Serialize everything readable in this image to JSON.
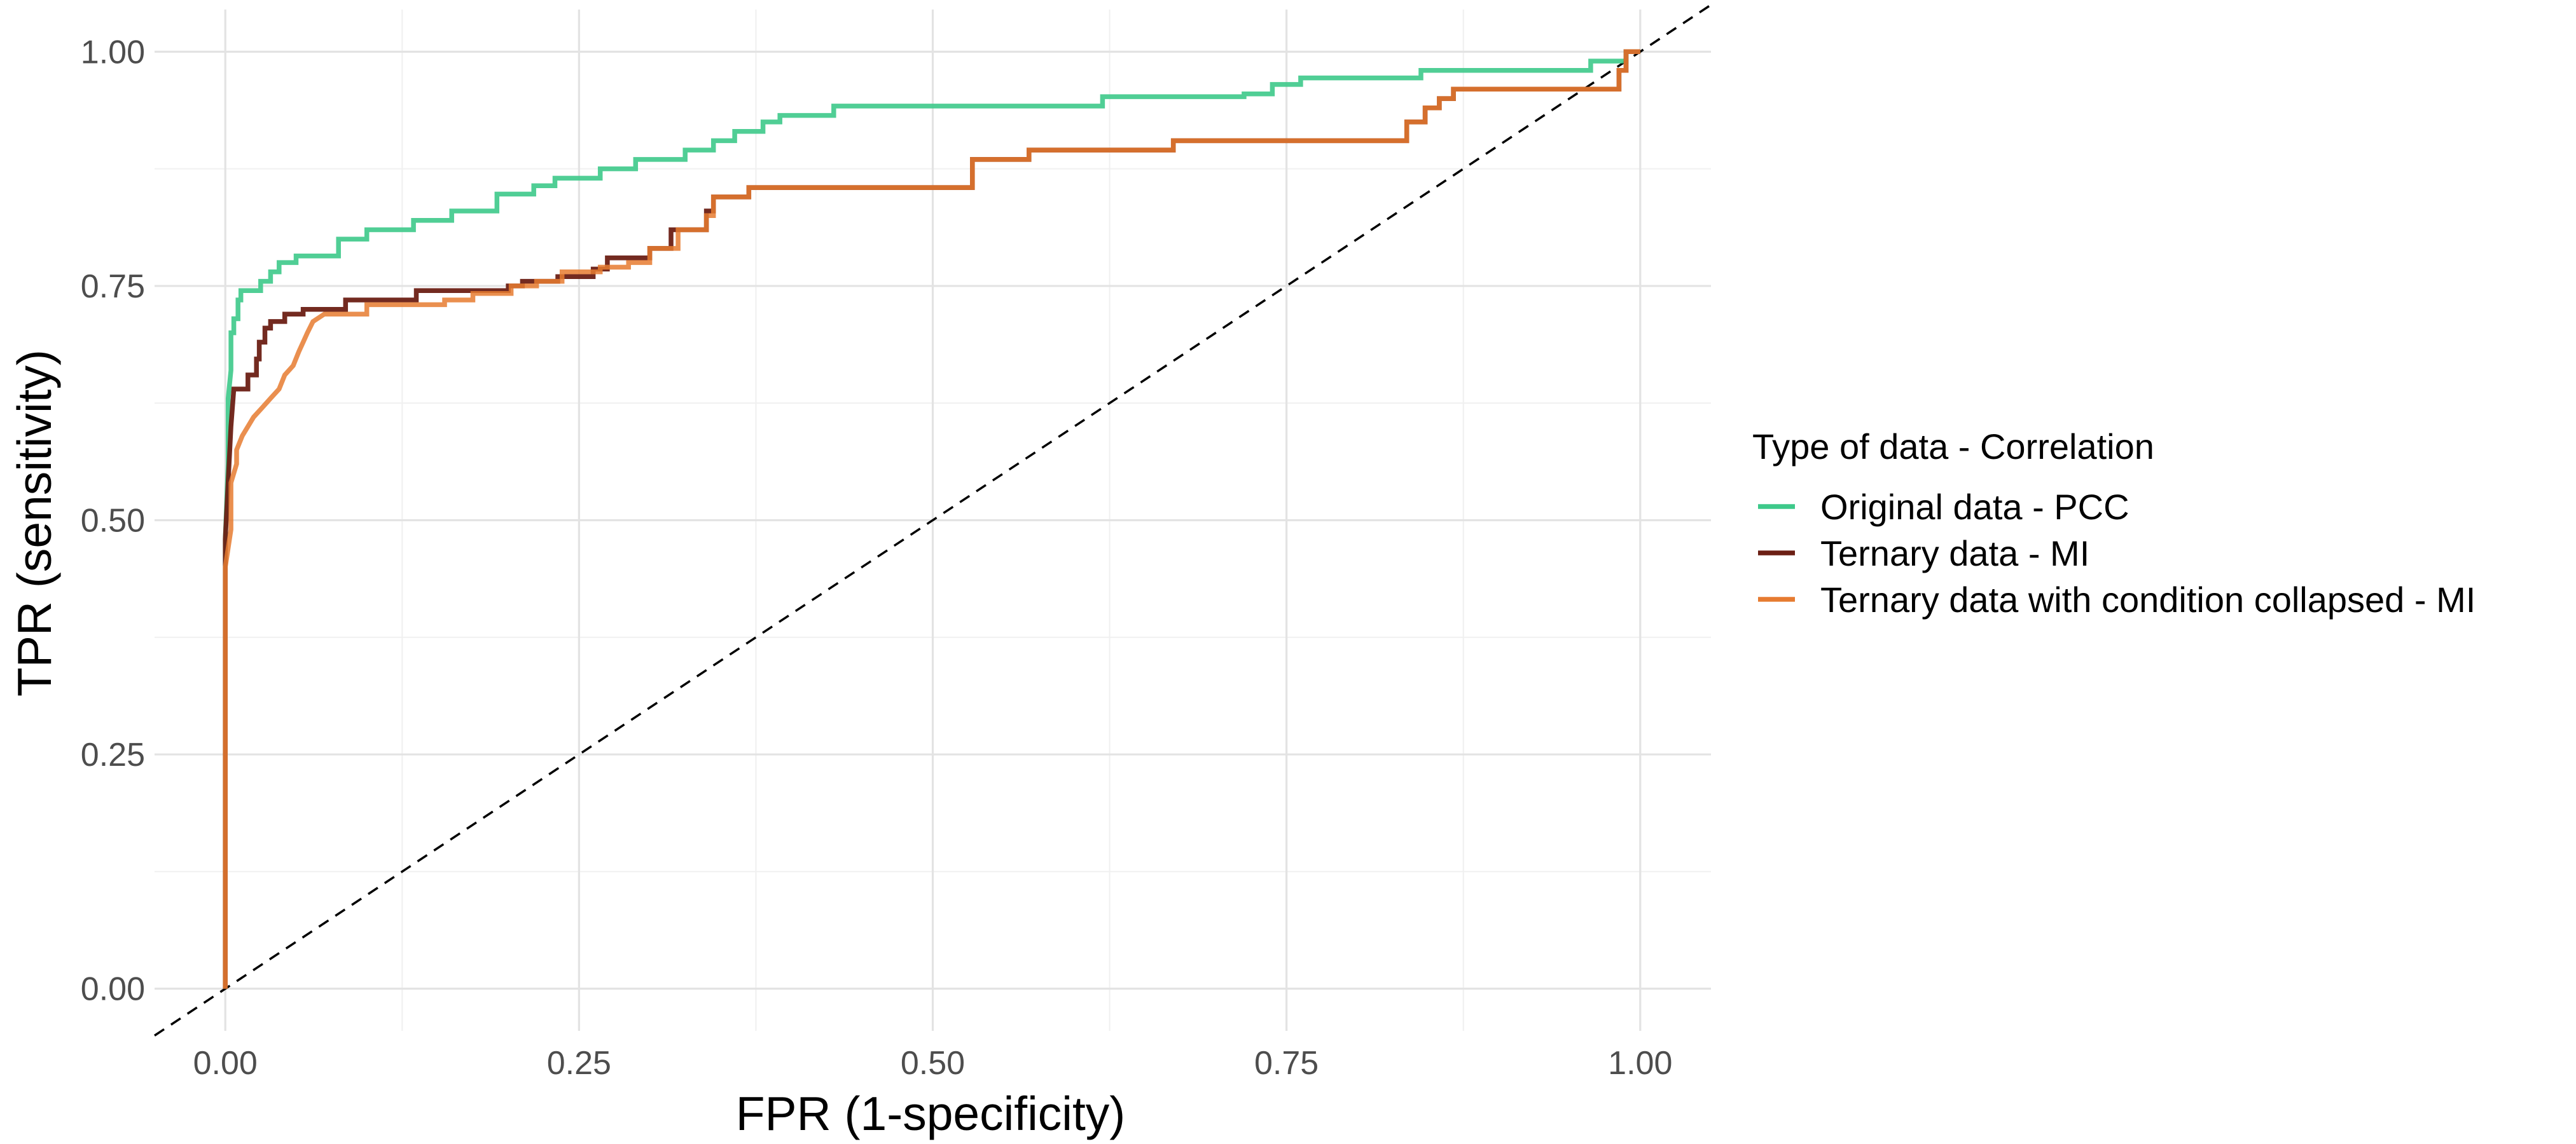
{
  "chart_data": {
    "type": "line",
    "xlabel": "FPR (1-specificity)",
    "ylabel": "TPR (sensitivity)",
    "xlim": [
      -0.05,
      1.05
    ],
    "ylim": [
      -0.045,
      1.045
    ],
    "x_ticks": [
      0.0,
      0.25,
      0.5,
      0.75,
      1.0
    ],
    "x_tick_labels": [
      "0.00",
      "0.25",
      "0.50",
      "0.75",
      "1.00"
    ],
    "y_ticks": [
      0.0,
      0.25,
      0.5,
      0.75,
      1.0
    ],
    "y_tick_labels": [
      "0.00",
      "0.25",
      "0.50",
      "0.75",
      "1.00"
    ],
    "grid": true,
    "reference_line": {
      "from": [
        -0.05,
        -0.05
      ],
      "to": [
        1.05,
        1.05
      ],
      "style": "dashed",
      "color": "#000000"
    },
    "legend": {
      "title": "Type of data - Correlation",
      "placement": "right"
    },
    "series": [
      {
        "name": "Original data - PCC",
        "color": "#3dc98a",
        "opacity": 0.9,
        "points": [
          [
            0,
            0
          ],
          [
            0,
            0.48
          ],
          [
            0.002,
            0.56
          ],
          [
            0.002,
            0.63
          ],
          [
            0.004,
            0.66
          ],
          [
            0.004,
            0.7
          ],
          [
            0.006,
            0.7
          ],
          [
            0.006,
            0.715
          ],
          [
            0.009,
            0.715
          ],
          [
            0.009,
            0.735
          ],
          [
            0.011,
            0.735
          ],
          [
            0.011,
            0.745
          ],
          [
            0.025,
            0.745
          ],
          [
            0.025,
            0.755
          ],
          [
            0.032,
            0.755
          ],
          [
            0.032,
            0.765
          ],
          [
            0.038,
            0.765
          ],
          [
            0.038,
            0.775
          ],
          [
            0.05,
            0.775
          ],
          [
            0.05,
            0.782
          ],
          [
            0.08,
            0.782
          ],
          [
            0.08,
            0.8
          ],
          [
            0.1,
            0.8
          ],
          [
            0.1,
            0.81
          ],
          [
            0.133,
            0.81
          ],
          [
            0.133,
            0.82
          ],
          [
            0.16,
            0.82
          ],
          [
            0.16,
            0.83
          ],
          [
            0.192,
            0.83
          ],
          [
            0.192,
            0.848
          ],
          [
            0.218,
            0.848
          ],
          [
            0.218,
            0.857
          ],
          [
            0.233,
            0.857
          ],
          [
            0.233,
            0.865
          ],
          [
            0.265,
            0.865
          ],
          [
            0.265,
            0.875
          ],
          [
            0.29,
            0.875
          ],
          [
            0.29,
            0.885
          ],
          [
            0.325,
            0.885
          ],
          [
            0.325,
            0.895
          ],
          [
            0.345,
            0.895
          ],
          [
            0.345,
            0.905
          ],
          [
            0.36,
            0.905
          ],
          [
            0.36,
            0.915
          ],
          [
            0.38,
            0.915
          ],
          [
            0.38,
            0.925
          ],
          [
            0.392,
            0.925
          ],
          [
            0.392,
            0.932
          ],
          [
            0.43,
            0.932
          ],
          [
            0.43,
            0.942
          ],
          [
            0.62,
            0.942
          ],
          [
            0.62,
            0.952
          ],
          [
            0.72,
            0.952
          ],
          [
            0.72,
            0.955
          ],
          [
            0.74,
            0.955
          ],
          [
            0.74,
            0.965
          ],
          [
            0.76,
            0.965
          ],
          [
            0.76,
            0.972
          ],
          [
            0.845,
            0.972
          ],
          [
            0.845,
            0.98
          ],
          [
            0.965,
            0.98
          ],
          [
            0.965,
            0.99
          ],
          [
            0.99,
            0.99
          ],
          [
            0.99,
            1.0
          ],
          [
            1.0,
            1.0
          ]
        ]
      },
      {
        "name": "Ternary data - MI",
        "color": "#6b1f14",
        "opacity": 0.95,
        "points": [
          [
            0,
            0
          ],
          [
            0,
            0.48
          ],
          [
            0.004,
            0.6
          ],
          [
            0.006,
            0.64
          ],
          [
            0.016,
            0.64
          ],
          [
            0.016,
            0.655
          ],
          [
            0.022,
            0.655
          ],
          [
            0.022,
            0.672
          ],
          [
            0.024,
            0.672
          ],
          [
            0.024,
            0.69
          ],
          [
            0.028,
            0.69
          ],
          [
            0.028,
            0.705
          ],
          [
            0.032,
            0.705
          ],
          [
            0.032,
            0.712
          ],
          [
            0.042,
            0.712
          ],
          [
            0.042,
            0.72
          ],
          [
            0.055,
            0.72
          ],
          [
            0.055,
            0.725
          ],
          [
            0.085,
            0.725
          ],
          [
            0.085,
            0.735
          ],
          [
            0.135,
            0.735
          ],
          [
            0.135,
            0.745
          ],
          [
            0.2,
            0.745
          ],
          [
            0.2,
            0.75
          ],
          [
            0.21,
            0.75
          ],
          [
            0.21,
            0.755
          ],
          [
            0.235,
            0.755
          ],
          [
            0.235,
            0.76
          ],
          [
            0.26,
            0.76
          ],
          [
            0.26,
            0.768
          ],
          [
            0.27,
            0.768
          ],
          [
            0.27,
            0.78
          ],
          [
            0.3,
            0.78
          ],
          [
            0.3,
            0.79
          ],
          [
            0.315,
            0.79
          ],
          [
            0.315,
            0.81
          ],
          [
            0.34,
            0.81
          ],
          [
            0.34,
            0.83
          ],
          [
            0.345,
            0.83
          ],
          [
            0.345,
            0.845
          ],
          [
            0.37,
            0.845
          ],
          [
            0.37,
            0.855
          ],
          [
            0.528,
            0.855
          ],
          [
            0.528,
            0.885
          ],
          [
            0.568,
            0.885
          ],
          [
            0.568,
            0.895
          ],
          [
            0.67,
            0.895
          ],
          [
            0.67,
            0.905
          ],
          [
            0.835,
            0.905
          ],
          [
            0.835,
            0.925
          ],
          [
            0.848,
            0.925
          ],
          [
            0.848,
            0.94
          ],
          [
            0.858,
            0.94
          ],
          [
            0.858,
            0.95
          ],
          [
            0.868,
            0.95
          ],
          [
            0.868,
            0.96
          ],
          [
            0.985,
            0.96
          ],
          [
            0.985,
            0.98
          ],
          [
            0.99,
            0.98
          ],
          [
            0.99,
            1.0
          ],
          [
            1.0,
            1.0
          ]
        ]
      },
      {
        "name": "Ternary data with condition collapsed - MI",
        "color": "#e67b30",
        "opacity": 0.85,
        "points": [
          [
            0,
            0
          ],
          [
            0,
            0.45
          ],
          [
            0.004,
            0.49
          ],
          [
            0.004,
            0.54
          ],
          [
            0.008,
            0.56
          ],
          [
            0.008,
            0.575
          ],
          [
            0.012,
            0.59
          ],
          [
            0.016,
            0.6
          ],
          [
            0.02,
            0.61
          ],
          [
            0.026,
            0.62
          ],
          [
            0.032,
            0.63
          ],
          [
            0.038,
            0.64
          ],
          [
            0.042,
            0.655
          ],
          [
            0.048,
            0.665
          ],
          [
            0.052,
            0.68
          ],
          [
            0.055,
            0.69
          ],
          [
            0.058,
            0.7
          ],
          [
            0.062,
            0.712
          ],
          [
            0.07,
            0.72
          ],
          [
            0.1,
            0.72
          ],
          [
            0.1,
            0.73
          ],
          [
            0.155,
            0.73
          ],
          [
            0.155,
            0.735
          ],
          [
            0.175,
            0.735
          ],
          [
            0.175,
            0.742
          ],
          [
            0.202,
            0.742
          ],
          [
            0.202,
            0.75
          ],
          [
            0.22,
            0.75
          ],
          [
            0.22,
            0.755
          ],
          [
            0.238,
            0.755
          ],
          [
            0.238,
            0.765
          ],
          [
            0.265,
            0.765
          ],
          [
            0.265,
            0.77
          ],
          [
            0.285,
            0.77
          ],
          [
            0.285,
            0.775
          ],
          [
            0.3,
            0.775
          ],
          [
            0.3,
            0.79
          ],
          [
            0.32,
            0.79
          ],
          [
            0.32,
            0.81
          ],
          [
            0.34,
            0.81
          ],
          [
            0.34,
            0.825
          ],
          [
            0.345,
            0.825
          ],
          [
            0.345,
            0.845
          ],
          [
            0.37,
            0.845
          ],
          [
            0.37,
            0.855
          ],
          [
            0.528,
            0.855
          ],
          [
            0.528,
            0.885
          ],
          [
            0.568,
            0.885
          ],
          [
            0.568,
            0.895
          ],
          [
            0.67,
            0.895
          ],
          [
            0.67,
            0.905
          ],
          [
            0.835,
            0.905
          ],
          [
            0.835,
            0.925
          ],
          [
            0.848,
            0.925
          ],
          [
            0.848,
            0.94
          ],
          [
            0.858,
            0.94
          ],
          [
            0.858,
            0.95
          ],
          [
            0.868,
            0.95
          ],
          [
            0.868,
            0.96
          ],
          [
            0.985,
            0.96
          ],
          [
            0.985,
            0.98
          ],
          [
            0.99,
            0.98
          ],
          [
            0.99,
            1.0
          ],
          [
            1.0,
            1.0
          ]
        ]
      }
    ]
  }
}
